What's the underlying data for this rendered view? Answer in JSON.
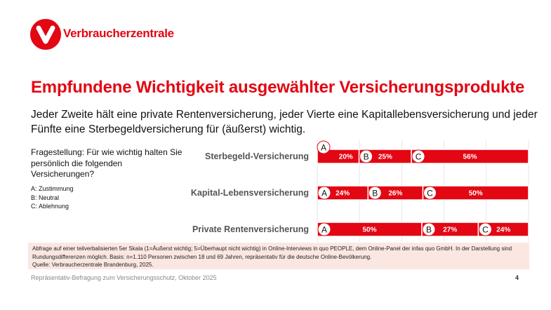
{
  "logo": {
    "text": "Verbraucherzentrale",
    "color": "#e30613"
  },
  "title": "Empfundene Wichtigkeit ausgewählter Versicherungsprodukte",
  "subtitle": "Jeder Zweite hält eine private Rentenversicherung, jeder Vierte eine Kapitallebensversicherung und jeder Fünfte eine Sterbegeldversicherung für (äußerst) wichtig.",
  "question": "Fragestellung: Für wie wichtig halten Sie persönlich die folgenden Versicherungen?",
  "legend": [
    "A: Zustimmung",
    "B: Neutral",
    "C: Ablehnung"
  ],
  "chart_data": {
    "type": "bar",
    "stacked": true,
    "orientation": "horizontal",
    "categories": [
      "Sterbegeld-Versicherung",
      "Kapital-Lebensversicherung",
      "Private Rentenversicherung"
    ],
    "series": [
      {
        "name": "A",
        "values": [
          20,
          24,
          50
        ]
      },
      {
        "name": "B",
        "values": [
          25,
          26,
          27
        ]
      },
      {
        "name": "C",
        "values": [
          56,
          50,
          24
        ]
      }
    ],
    "xlim": [
      0,
      100
    ],
    "grid": true,
    "bar_color": "#e30613"
  },
  "note": "Abfrage auf einer teilverbalisierten 5er Skala (1=Äußerst wichtig; 5=Überhaupt nicht wichtig) in Online-Interviews in quo PEOPLE, dem Online-Panel der infas quo GmbH. In der Darstellung sind Rundungsdifferenzen möglich. Basis: n=1.110 Personen zwischen 18 und 69 Jahren, repräsentativ für die deutsche Online-Bevölkerung.",
  "source": "Quelle: Verbraucherzentrale Brandenburg, 2025.",
  "footer": "Repräsentativ-Befragung zum Versicherungsschutz, Oktober 2025",
  "page": "4"
}
